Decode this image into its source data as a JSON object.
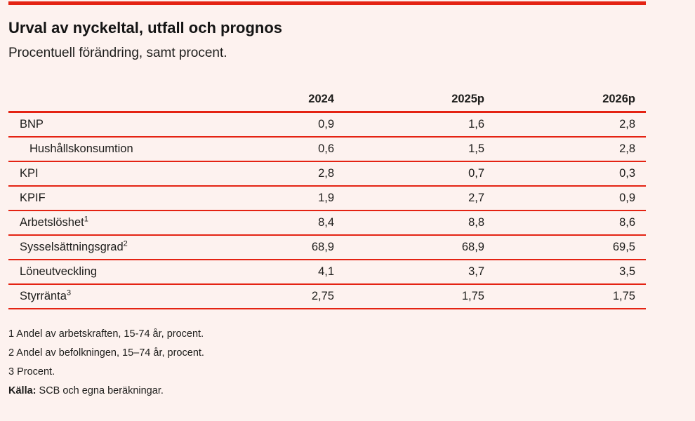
{
  "page": {
    "title": "Urval av nyckeltal, utfall och prognos",
    "subtitle": "Procentuell förändring, samt procent."
  },
  "colors": {
    "accent_red": "#e42313",
    "background": "#fdf2ef",
    "text": "#1d1d1b"
  },
  "table": {
    "columns": [
      "2024",
      "2025p",
      "2026p"
    ],
    "rows": [
      {
        "label": "BNP",
        "sup": "",
        "values": [
          "0,9",
          "1,6",
          "2,8"
        ]
      },
      {
        "label": "Hushållskonsumtion",
        "sup": "",
        "values": [
          "0,6",
          "1,5",
          "2,8"
        ]
      },
      {
        "label": "KPI",
        "sup": "",
        "values": [
          "2,8",
          "0,7",
          "0,3"
        ]
      },
      {
        "label": "KPIF",
        "sup": "",
        "values": [
          "1,9",
          "2,7",
          "0,9"
        ]
      },
      {
        "label": "Arbetslöshet",
        "sup": "1",
        "values": [
          "8,4",
          "8,8",
          "8,6"
        ]
      },
      {
        "label": "Sysselsättningsgrad",
        "sup": "2",
        "values": [
          "68,9",
          "68,9",
          "69,5"
        ]
      },
      {
        "label": "Löneutveckling",
        "sup": "",
        "values": [
          "4,1",
          "3,7",
          "3,5"
        ]
      },
      {
        "label": "Styrränta",
        "sup": "3",
        "values": [
          "2,75",
          "1,75",
          "1,75"
        ]
      }
    ]
  },
  "footnotes": [
    "1 Andel av arbetskraften, 15-74 år, procent.",
    "2 Andel av befolkningen, 15–74 år, procent.",
    "3 Procent."
  ],
  "source": {
    "label": "Källa:",
    "text": " SCB och egna beräkningar."
  }
}
